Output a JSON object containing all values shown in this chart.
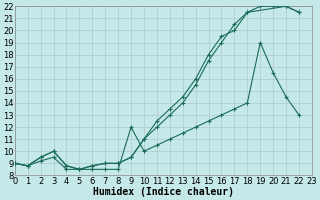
{
  "xlabel": "Humidex (Indice chaleur)",
  "bg_color": "#c5e8e8",
  "line_color": "#1a6b5a",
  "grid_color": "#b0d0d0",
  "xmin": 0,
  "xmax": 23,
  "ymin": 8,
  "ymax": 22,
  "line1_x": [
    0,
    1,
    2,
    3,
    4,
    5,
    6,
    7,
    8,
    9,
    10,
    11,
    12,
    13,
    14,
    15,
    16,
    17,
    18,
    21,
    22
  ],
  "line1_y": [
    9,
    8.8,
    9.5,
    10,
    8.8,
    8.5,
    8.8,
    9,
    9,
    9.5,
    11,
    12.5,
    13.5,
    14.5,
    16,
    18,
    19.5,
    20,
    21.5,
    22,
    21.5
  ],
  "line2_x": [
    0,
    1,
    2,
    3,
    4,
    5,
    6,
    7,
    8,
    9,
    10,
    11,
    12,
    13,
    14,
    15,
    16,
    17,
    18,
    19,
    20,
    21,
    22
  ],
  "line2_y": [
    9,
    8.8,
    9.5,
    10,
    8.8,
    8.5,
    8.8,
    9,
    9,
    9.5,
    11,
    12,
    13,
    14,
    15.5,
    17.5,
    19,
    20.5,
    21.5,
    22,
    22,
    22,
    21.5
  ],
  "line3_x": [
    0,
    1,
    2,
    3,
    4,
    5,
    6,
    7,
    8,
    9,
    10,
    11,
    12,
    13,
    14,
    15,
    16,
    17,
    18,
    19,
    20,
    21,
    22
  ],
  "line3_y": [
    9,
    8.8,
    9.2,
    9.5,
    8.5,
    8.5,
    8.5,
    8.5,
    8.5,
    12,
    10,
    10.5,
    11,
    11.5,
    12,
    12.5,
    13,
    13.5,
    14,
    19,
    16.5,
    14.5,
    13
  ],
  "font_size": 6,
  "marker_size": 2.5,
  "xtick_labels": [
    "0",
    "1",
    "2",
    "3",
    "4",
    "5",
    "6",
    "7",
    "8",
    "9",
    "10",
    "11",
    "12",
    "13",
    "14",
    "15",
    "16",
    "17",
    "18",
    "19",
    "20",
    "21",
    "22",
    "23"
  ]
}
